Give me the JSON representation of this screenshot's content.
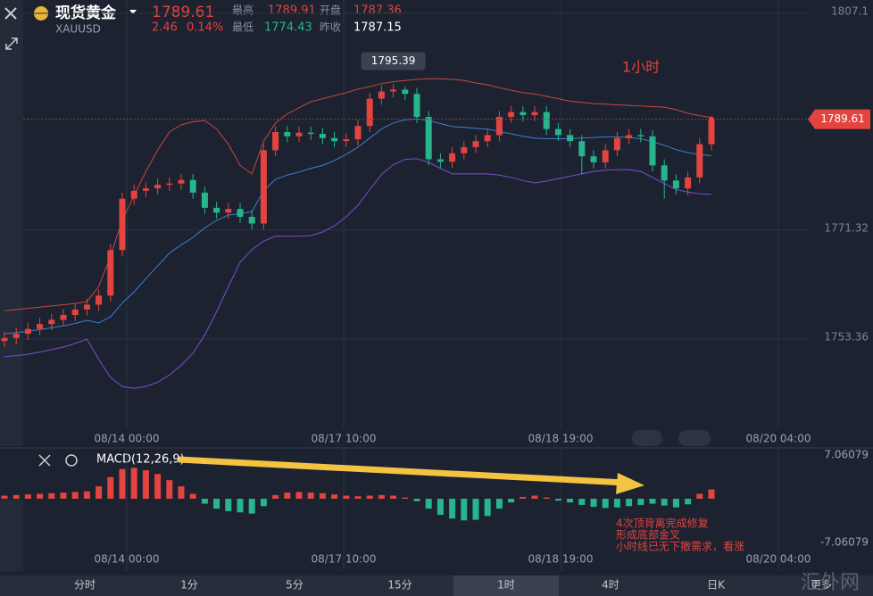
{
  "header": {
    "name": "现货黄金",
    "symbol": "XAUUSD",
    "price": "1789.61",
    "change": "2.46",
    "change_pct": "0.14%",
    "high_label": "最高",
    "high": "1789.91",
    "open_label": "开盘",
    "open": "1787.36",
    "low_label": "最低",
    "low": "1774.43",
    "prev_label": "昨收",
    "prev_close": "1787.15"
  },
  "chart_data": [
    {
      "type": "candlestick",
      "title": "1小时",
      "up_color": "#e3443f",
      "down_color": "#26b58c",
      "x_labels": [
        "08/14 00:00",
        "08/17 10:00",
        "08/18 19:00",
        "08/20 04:00"
      ],
      "ylim": [
        1738.6,
        1809.3
      ],
      "yticks": [
        1807.1,
        1771.32,
        1753.36
      ],
      "grid": true,
      "open": [
        1753.0,
        1753.5,
        1754.2,
        1755.0,
        1755.8,
        1756.5,
        1757.3,
        1758.2,
        1759.0,
        1760.5,
        1768.0,
        1776.5,
        1777.8,
        1778.2,
        1778.8,
        1779.0,
        1779.6,
        1777.5,
        1775.0,
        1774.2,
        1774.8,
        1773.5,
        1772.4,
        1784.5,
        1787.5,
        1786.8,
        1787.4,
        1787.2,
        1786.5,
        1786.0,
        1786.3,
        1788.5,
        1793.0,
        1794.2,
        1794.5,
        1793.8,
        1790.0,
        1783.0,
        1782.6,
        1784.0,
        1785.0,
        1786.0,
        1787.0,
        1790.0,
        1790.8,
        1790.3,
        1790.8,
        1788.0,
        1787.0,
        1786.0,
        1783.5,
        1782.5,
        1784.5,
        1786.5,
        1787.0,
        1786.8,
        1782.0,
        1779.5,
        1778.2,
        1780.0,
        1785.5
      ],
      "high": [
        1754.5,
        1755.2,
        1756.0,
        1756.8,
        1757.5,
        1758.3,
        1759.2,
        1760.0,
        1761.5,
        1769.0,
        1777.5,
        1778.8,
        1779.2,
        1779.8,
        1780.0,
        1780.6,
        1780.6,
        1778.5,
        1776.0,
        1775.8,
        1775.8,
        1774.5,
        1785.5,
        1788.5,
        1788.5,
        1788.4,
        1788.4,
        1788.2,
        1787.5,
        1787.3,
        1789.5,
        1794.0,
        1795.2,
        1795.39,
        1795.0,
        1794.8,
        1791.0,
        1784.0,
        1785.0,
        1786.0,
        1787.0,
        1788.0,
        1791.0,
        1791.8,
        1791.8,
        1791.8,
        1791.8,
        1789.0,
        1788.0,
        1787.0,
        1784.5,
        1785.5,
        1787.5,
        1788.0,
        1788.0,
        1787.8,
        1783.0,
        1780.5,
        1781.0,
        1786.5,
        1789.91
      ],
      "low": [
        1752.0,
        1752.5,
        1753.2,
        1754.0,
        1754.8,
        1755.5,
        1756.3,
        1757.2,
        1758.0,
        1759.5,
        1767.0,
        1775.5,
        1776.8,
        1777.2,
        1777.8,
        1778.0,
        1776.5,
        1774.0,
        1773.2,
        1773.2,
        1772.5,
        1771.4,
        1771.4,
        1783.5,
        1785.8,
        1785.8,
        1786.2,
        1785.5,
        1785.0,
        1785.0,
        1785.3,
        1787.5,
        1792.0,
        1793.2,
        1792.8,
        1789.0,
        1782.0,
        1781.6,
        1781.6,
        1783.0,
        1784.0,
        1785.0,
        1786.0,
        1789.0,
        1789.3,
        1789.3,
        1787.0,
        1786.0,
        1785.0,
        1780.5,
        1781.5,
        1781.5,
        1783.5,
        1785.5,
        1785.8,
        1781.0,
        1776.5,
        1777.2,
        1777.0,
        1779.0,
        1784.5
      ],
      "close": [
        1753.5,
        1754.2,
        1755.0,
        1755.8,
        1756.5,
        1757.3,
        1758.2,
        1759.0,
        1760.5,
        1768.0,
        1776.5,
        1777.8,
        1778.2,
        1778.8,
        1779.0,
        1779.6,
        1777.5,
        1775.0,
        1774.2,
        1774.8,
        1773.5,
        1772.4,
        1784.5,
        1787.5,
        1786.8,
        1787.4,
        1787.2,
        1786.5,
        1786.0,
        1786.3,
        1788.5,
        1793.0,
        1794.2,
        1794.5,
        1793.8,
        1790.0,
        1783.0,
        1782.6,
        1784.0,
        1785.0,
        1786.0,
        1787.0,
        1790.0,
        1790.8,
        1790.3,
        1790.8,
        1788.0,
        1787.0,
        1786.0,
        1783.5,
        1782.5,
        1784.5,
        1786.5,
        1787.0,
        1786.8,
        1782.0,
        1779.5,
        1778.2,
        1780.0,
        1785.5,
        1789.61
      ],
      "bands": [
        {
          "color": "#c9473f",
          "values": [
            1758.0,
            1758.2,
            1758.4,
            1758.6,
            1758.8,
            1759.0,
            1759.2,
            1759.5,
            1762.0,
            1767.0,
            1773.0,
            1777.0,
            1781.0,
            1784.5,
            1787.5,
            1788.7,
            1789.2,
            1789.4,
            1788.0,
            1785.5,
            1782.0,
            1780.6,
            1786.0,
            1789.0,
            1790.5,
            1791.5,
            1792.5,
            1793.0,
            1793.5,
            1794.0,
            1794.6,
            1795.0,
            1795.5,
            1795.8,
            1796.0,
            1796.2,
            1796.3,
            1796.3,
            1796.2,
            1796.0,
            1795.6,
            1795.3,
            1794.8,
            1794.4,
            1794.0,
            1793.8,
            1793.4,
            1793.0,
            1792.6,
            1792.4,
            1792.2,
            1792.1,
            1792.0,
            1791.9,
            1791.8,
            1791.7,
            1791.6,
            1791.2,
            1790.6,
            1790.2,
            1789.9
          ]
        },
        {
          "color": "#3d7fd1",
          "values": [
            1754.2,
            1754.4,
            1754.6,
            1754.9,
            1755.2,
            1755.5,
            1755.9,
            1756.4,
            1756.0,
            1757.0,
            1759.3,
            1761.1,
            1763.3,
            1765.4,
            1767.5,
            1768.9,
            1770.1,
            1771.7,
            1772.9,
            1773.8,
            1774.0,
            1774.4,
            1777.8,
            1779.7,
            1780.4,
            1780.9,
            1781.5,
            1782.0,
            1782.8,
            1783.8,
            1785.0,
            1786.5,
            1788.0,
            1789.0,
            1789.5,
            1789.7,
            1789.4,
            1788.9,
            1788.4,
            1788.3,
            1788.1,
            1788.0,
            1787.6,
            1787.2,
            1786.8,
            1786.5,
            1786.4,
            1786.4,
            1786.4,
            1786.5,
            1786.6,
            1786.7,
            1786.7,
            1786.6,
            1786.4,
            1785.9,
            1785.3,
            1784.6,
            1784.1,
            1783.8,
            1783.6
          ]
        },
        {
          "color": "#7c4fd0",
          "values": [
            1750.4,
            1750.6,
            1750.8,
            1751.2,
            1751.6,
            1752.0,
            1752.6,
            1753.3,
            1750.0,
            1747.0,
            1745.5,
            1745.2,
            1745.5,
            1746.2,
            1747.4,
            1749.0,
            1751.0,
            1754.0,
            1757.8,
            1762.0,
            1766.0,
            1768.1,
            1769.5,
            1770.3,
            1770.3,
            1770.3,
            1770.4,
            1771.0,
            1772.0,
            1773.5,
            1775.4,
            1778.0,
            1780.5,
            1782.1,
            1783.0,
            1783.1,
            1782.5,
            1781.5,
            1780.6,
            1780.6,
            1780.6,
            1780.6,
            1780.4,
            1780.0,
            1779.5,
            1779.1,
            1779.4,
            1779.8,
            1780.2,
            1780.6,
            1781.0,
            1781.2,
            1781.3,
            1781.3,
            1781.0,
            1780.0,
            1779.0,
            1778.0,
            1777.6,
            1777.3,
            1777.2
          ]
        }
      ]
    },
    {
      "type": "bar",
      "title": "MACD(12,26,9)",
      "up_color": "#e3443f",
      "down_color": "#26b58c",
      "ylim": [
        -7.06079,
        7.06079
      ],
      "yticks": [
        7.06079,
        -7.06079
      ],
      "x_labels": [
        "08/14 00:00",
        "08/17 10:00",
        "08/18 19:00",
        "08/20 04:00"
      ],
      "values": [
        0.5,
        0.6,
        0.7,
        0.8,
        0.9,
        1.0,
        1.1,
        1.2,
        2.0,
        3.5,
        4.8,
        5.0,
        4.6,
        4.0,
        3.0,
        2.0,
        0.8,
        -0.8,
        -1.6,
        -2.0,
        -2.2,
        -2.4,
        -1.2,
        0.6,
        1.0,
        1.1,
        1.0,
        0.9,
        0.7,
        0.5,
        0.4,
        0.5,
        0.6,
        0.5,
        0.2,
        -0.4,
        -1.6,
        -2.6,
        -3.2,
        -3.5,
        -3.4,
        -2.8,
        -1.6,
        -0.6,
        0.3,
        0.5,
        0.2,
        -0.3,
        -0.6,
        -1.0,
        -1.3,
        -1.5,
        -1.4,
        -1.2,
        -1.0,
        -0.8,
        -1.1,
        -1.4,
        -0.9,
        0.8,
        1.5
      ],
      "annotation": [
        "4次顶背离完成修复",
        "形成底部金叉",
        "小时线已无下撤需求，看涨"
      ]
    }
  ],
  "tabs": [
    "分时",
    "1分",
    "5分",
    "15分",
    "1时",
    "4时",
    "日K",
    "更多"
  ],
  "watermark": "汇外网"
}
